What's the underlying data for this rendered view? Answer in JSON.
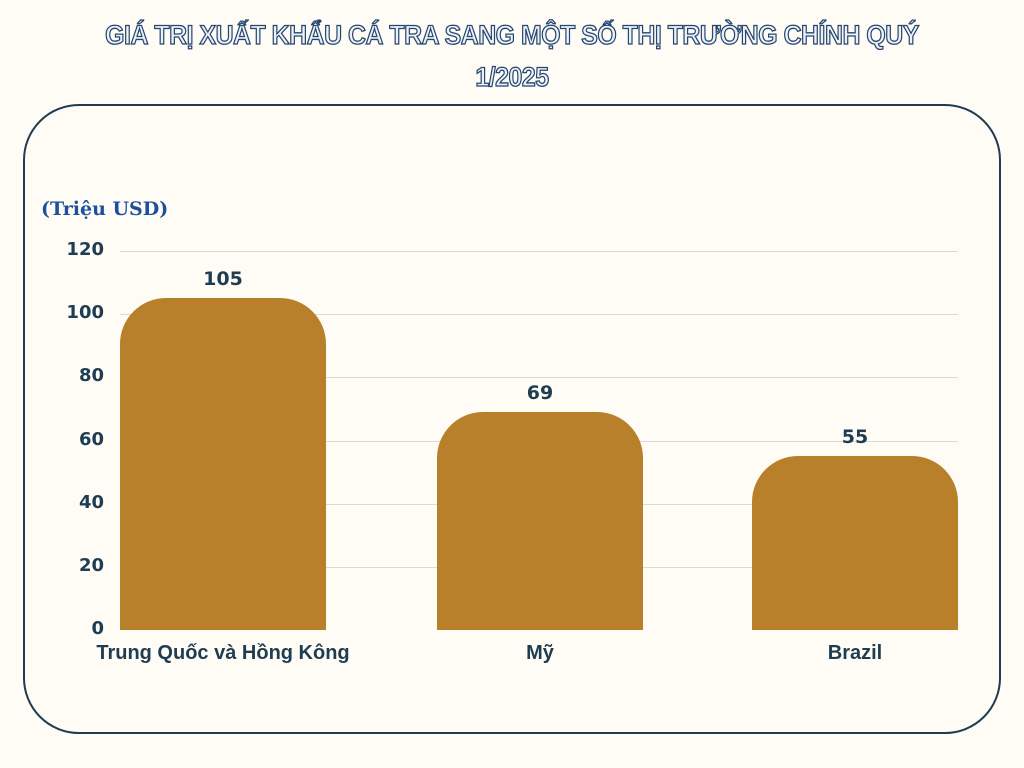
{
  "title": {
    "line1": "GIÁ TRỊ XUẤT KHẨU CÁ TRA SANG MỘT SỐ THỊ TRƯỜNG CHÍNH QUÝ",
    "line2": "1/2025"
  },
  "unit_label": "(Triệu USD)",
  "colors": {
    "bar": "#b8802a",
    "text": "#1f3d52",
    "title_outline": "#24466f",
    "unit_label": "#1c4f9c",
    "card_border": "#1e3d54",
    "background": "#fefcf5",
    "gridline": "#d9d9d6"
  },
  "y_ticks": [
    "0",
    "20",
    "40",
    "60",
    "80",
    "100",
    "120"
  ],
  "bars": [
    {
      "label": "Trung Quốc và Hồng Kông",
      "value_text": "105"
    },
    {
      "label": "Mỹ",
      "value_text": "69"
    },
    {
      "label": "Brazil",
      "value_text": "55"
    }
  ],
  "chart_data": {
    "type": "bar",
    "title": "GIÁ TRỊ XUẤT KHẨU CÁ TRA SANG MỘT SỐ THỊ TRƯỜNG CHÍNH QUÝ 1/2025",
    "categories": [
      "Trung Quốc và Hồng Kông",
      "Mỹ",
      "Brazil"
    ],
    "values": [
      105,
      69,
      55
    ],
    "xlabel": "",
    "ylabel": "(Triệu USD)",
    "ylim": [
      0,
      120
    ],
    "yticks": [
      0,
      20,
      40,
      60,
      80,
      100,
      120
    ],
    "grid": true,
    "legend": null,
    "data_labels": true
  }
}
